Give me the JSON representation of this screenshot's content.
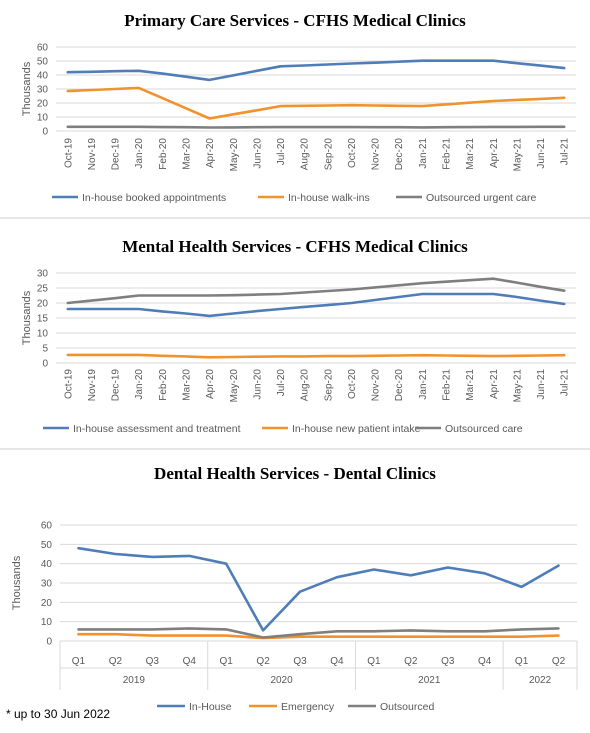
{
  "chart_data": [
    {
      "type": "line",
      "title": "Primary Care Services - CFHS Medical Clinics",
      "ylabel": "Thousands",
      "ylim": [
        0,
        60
      ],
      "yticks": [
        0,
        10,
        20,
        30,
        40,
        50,
        60
      ],
      "categories": [
        "Oct-19",
        "Nov-19",
        "Dec-19",
        "Jan-20",
        "Feb-20",
        "Mar-20",
        "Apr-20",
        "May-20",
        "Jun-20",
        "Jul-20",
        "Aug-20",
        "Sep-20",
        "Oct-20",
        "Nov-20",
        "Dec-20",
        "Jan-21",
        "Feb-21",
        "Mar-21",
        "Apr-21",
        "May-21",
        "Jun-21",
        "Jul-21"
      ],
      "series": [
        {
          "name": "In-house booked appointments",
          "color": "#4f7db8",
          "values": [
            42,
            42.3,
            42.7,
            43,
            41,
            38.8,
            36.5,
            39.7,
            43,
            46.2,
            46.8,
            47.5,
            48.2,
            48.8,
            49.5,
            50.2,
            50.2,
            50.2,
            50.2,
            48.4,
            46.7,
            44.9
          ]
        },
        {
          "name": "In-house walk-ins",
          "color": "#f0922d",
          "values": [
            28.5,
            29.3,
            30,
            30.8,
            23.5,
            16.2,
            8.9,
            11.9,
            14.8,
            17.8,
            18,
            18.2,
            18.4,
            18.2,
            18,
            17.8,
            19,
            20.2,
            21.4,
            22.2,
            22.9,
            23.7
          ]
        },
        {
          "name": "Outsourced urgent care",
          "color": "#7f7f7f",
          "values": [
            3,
            3,
            3,
            3,
            2.8,
            2.7,
            2.5,
            2.6,
            2.7,
            2.8,
            2.8,
            2.8,
            2.8,
            2.7,
            2.7,
            2.6,
            2.7,
            2.8,
            2.9,
            2.9,
            3,
            3
          ]
        }
      ],
      "grid": true,
      "legend": "bottom"
    },
    {
      "type": "line",
      "title": "Mental Health Services - CFHS Medical Clinics",
      "ylabel": "Thousands",
      "ylim": [
        0,
        30
      ],
      "yticks": [
        0,
        5,
        10,
        15,
        20,
        25,
        30
      ],
      "categories": [
        "Oct-19",
        "Nov-19",
        "Dec-19",
        "Jan-20",
        "Feb-20",
        "Mar-20",
        "Apr-20",
        "May-20",
        "Jun-20",
        "Jul-20",
        "Aug-20",
        "Sep-20",
        "Oct-20",
        "Nov-20",
        "Dec-20",
        "Jan-21",
        "Feb-21",
        "Mar-21",
        "Apr-21",
        "May-21",
        "Jun-21",
        "Jul-21"
      ],
      "series": [
        {
          "name": "In-house assessment and treatment",
          "color": "#4f7db8",
          "values": [
            18,
            18,
            18,
            18,
            17.2,
            16.5,
            15.7,
            16.5,
            17.3,
            18,
            18.7,
            19.3,
            20,
            21,
            22,
            23,
            23,
            23,
            23,
            22,
            20.8,
            19.7
          ]
        },
        {
          "name": "In-house new patient intake",
          "color": "#f0922d",
          "values": [
            2.7,
            2.7,
            2.7,
            2.7,
            2.4,
            2.2,
            1.9,
            2,
            2.1,
            2.2,
            2.2,
            2.3,
            2.3,
            2.4,
            2.5,
            2.6,
            2.5,
            2.4,
            2.3,
            2.4,
            2.5,
            2.6
          ]
        },
        {
          "name": "Outsourced care",
          "color": "#7f7f7f",
          "values": [
            20,
            20.8,
            21.6,
            22.5,
            22.5,
            22.5,
            22.5,
            22.6,
            22.8,
            23,
            23.5,
            24,
            24.5,
            25.2,
            25.9,
            26.6,
            27.1,
            27.6,
            28.1,
            26.8,
            25.4,
            24.1
          ]
        }
      ],
      "grid": true,
      "legend": "bottom"
    },
    {
      "type": "line",
      "title": "Dental Health Services - Dental Clinics",
      "ylabel": "Thousands",
      "ylim": [
        0,
        60
      ],
      "yticks": [
        0,
        10,
        20,
        30,
        40,
        50,
        60
      ],
      "categories": [
        "Q1",
        "Q2",
        "Q3",
        "Q4",
        "Q1",
        "Q2",
        "Q3",
        "Q4",
        "Q1",
        "Q2",
        "Q3",
        "Q4",
        "Q1",
        "Q2"
      ],
      "groups": [
        {
          "label": "2019",
          "count": 4
        },
        {
          "label": "2020",
          "count": 4
        },
        {
          "label": "2021",
          "count": 4
        },
        {
          "label": "2022",
          "count": 2
        }
      ],
      "series": [
        {
          "name": "In-House",
          "color": "#4f7db8",
          "values": [
            48,
            45,
            43.5,
            44,
            40,
            5.5,
            25.5,
            33,
            37,
            34,
            38,
            35,
            28,
            39
          ]
        },
        {
          "name": "Emergency",
          "color": "#f0922d",
          "values": [
            3.5,
            3.5,
            2.8,
            2.8,
            2.8,
            1.5,
            2.2,
            2.2,
            2.2,
            2.2,
            2.2,
            2.2,
            2.2,
            2.8
          ]
        },
        {
          "name": "Outsourced",
          "color": "#7f7f7f",
          "values": [
            6,
            6,
            6,
            6.5,
            6,
            1.8,
            3.5,
            5,
            5,
            5.5,
            5,
            5,
            6,
            6.5
          ]
        }
      ],
      "grid": true,
      "legend": "bottom"
    }
  ],
  "footnote": "* up to 30 Jun 2022"
}
